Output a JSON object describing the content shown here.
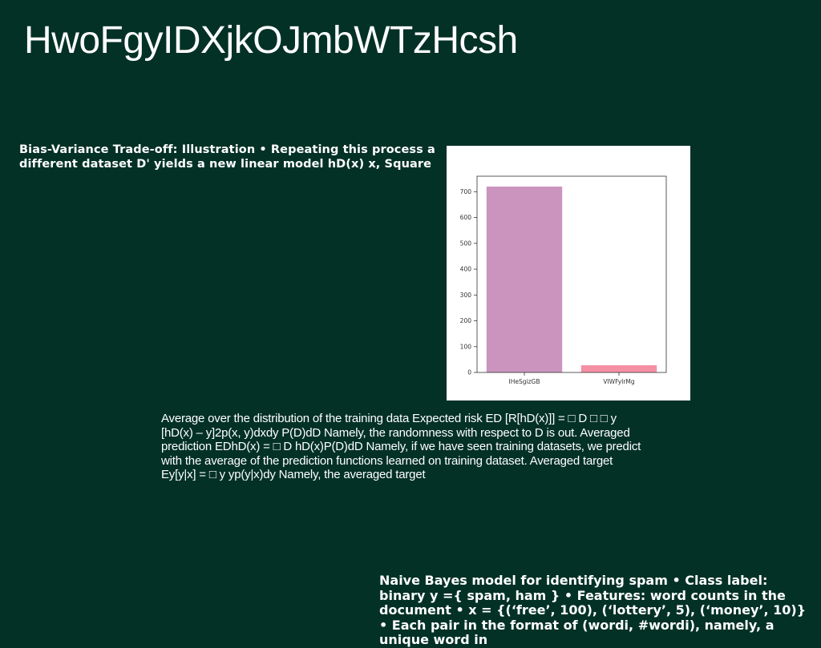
{
  "slide": {
    "title": "HwoFgyIDXjkOJmbWTzHcsh",
    "bias_text": "Bias-Variance Trade-off: Illustration • Repeating this process a different dataset D' yields a new linear model hD(x) x, Square",
    "average_text": "Average over the distribution of the training data Expected risk ED [R[hD(x)]] = □ D □ □ y [hD(x) – y]2p(x, y)dxdy P(D)dD Namely, the randomness with respect to D is out. Averaged prediction EDhD(x) = □ D hD(x)P(D)dD Namely, if we have seen training datasets, we predict with the average of the prediction functions learned on training dataset. Averaged target Ey[y|x] = □ y yp(y|x)dy Namely, the averaged target",
    "bayes_text": "Naive Bayes model for identifying spam • Class label: binary y ={ spam, ham } • Features: word counts in the document • x = {(‘free’, 100), (‘lottery’, 5), (‘money’, 10)} • Each pair in the format of (wordi, #wordi), namely, a unique word in"
  },
  "chart_data": {
    "type": "bar",
    "categories": [
      "IHeSgizGB",
      "VIWFyIrMg"
    ],
    "values": [
      720,
      28
    ],
    "colors": [
      "#cb94bf",
      "#f590a4"
    ],
    "ylim": [
      0,
      760
    ],
    "yticks": [
      0,
      100,
      200,
      300,
      400,
      500,
      600,
      700
    ],
    "title": "",
    "xlabel": "",
    "ylabel": "",
    "grid": false
  }
}
